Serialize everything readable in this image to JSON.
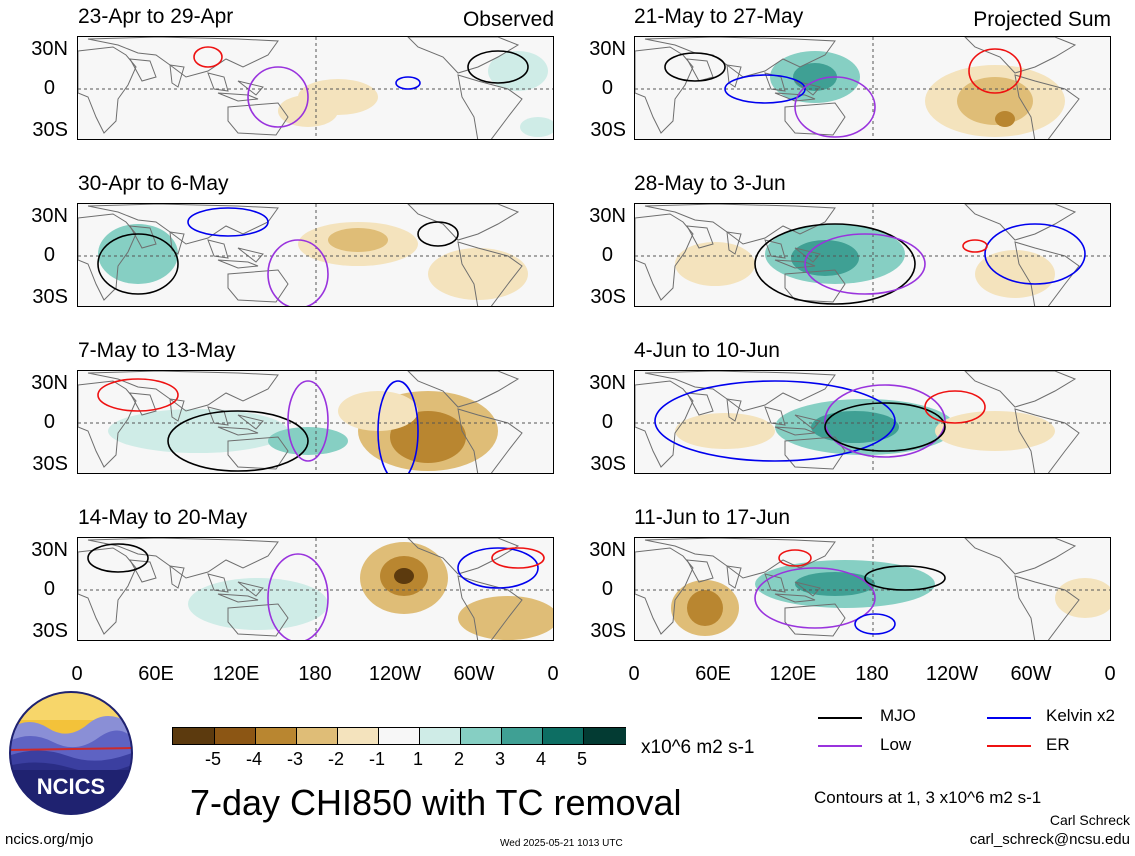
{
  "colors": {
    "mjo": "#000000",
    "kelvin": "#0000ee",
    "low": "#9933dd",
    "er": "#ee1111",
    "panel_bg": "#f7f7f7",
    "land": "#6e6e6e"
  },
  "panels": [
    {
      "period": "23-Apr to 29-Apr",
      "tag": "Observed"
    },
    {
      "period": "21-May to 27-May",
      "tag": "Projected Sum"
    },
    {
      "period": "30-Apr to 6-May",
      "tag": ""
    },
    {
      "period": "28-May to 3-Jun",
      "tag": ""
    },
    {
      "period": "7-May to 13-May",
      "tag": ""
    },
    {
      "period": "4-Jun to 10-Jun",
      "tag": ""
    },
    {
      "period": "14-May to 20-May",
      "tag": ""
    },
    {
      "period": "11-Jun to 17-Jun",
      "tag": ""
    }
  ],
  "lat_labels": [
    "30N",
    "0",
    "30S"
  ],
  "lon_labels": [
    "0",
    "60E",
    "120E",
    "180",
    "120W",
    "60W",
    "0"
  ],
  "colorbar": {
    "colors": [
      "#5c3a0e",
      "#8c5614",
      "#b98630",
      "#dfbd77",
      "#f4e3bd",
      "#f7f7f7",
      "#cfece7",
      "#86cfc3",
      "#3fa094",
      "#0d6e63",
      "#033b33"
    ],
    "labels": [
      "-5",
      "-4",
      "-3",
      "-2",
      "-1",
      "1",
      "2",
      "3",
      "4",
      "5"
    ],
    "unit": "x10^6 m2 s-1"
  },
  "legend": {
    "mjo": "MJO",
    "kelvin": "Kelvin x2",
    "low": "Low",
    "er": "ER"
  },
  "title": "7-day CHI850 with TC removal",
  "logo_text": "NCICS",
  "contours_note": "Contours at 1, 3 x10^6 m2 s-1",
  "author": "Carl Schreck",
  "email": "carl_schreck@ncsu.edu",
  "website": "ncics.org/mjo",
  "timestamp": "Wed 2025-05-21 1013 UTC"
}
